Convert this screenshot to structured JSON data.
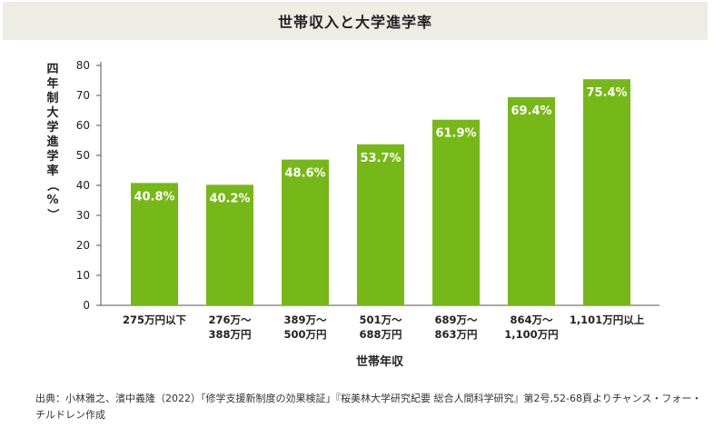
{
  "chart_data": {
    "type": "bar",
    "title": "世帯収入と大学進学率",
    "xlabel": "世帯年収",
    "ylabel": "四年制大学進学率（%）",
    "ylim": [
      0,
      80
    ],
    "yticks": [
      0,
      10,
      20,
      30,
      40,
      50,
      60,
      70,
      80
    ],
    "categories": [
      [
        "275万円以下"
      ],
      [
        "276万～",
        "388万円"
      ],
      [
        "389万～",
        "500万円"
      ],
      [
        "501万～",
        "688万円"
      ],
      [
        "689万～",
        "863万円"
      ],
      [
        "864万～",
        "1,100万円"
      ],
      [
        "1,101万円以上"
      ]
    ],
    "values": [
      40.8,
      40.2,
      48.6,
      53.7,
      61.9,
      69.4,
      75.4
    ],
    "value_labels": [
      "40.8%",
      "40.2%",
      "48.6%",
      "53.7%",
      "61.9%",
      "69.4%",
      "75.4%"
    ],
    "bar_color": "#76b817",
    "grid": false
  },
  "source": "出典：小林雅之、濱中義隆（2022）「修学支援新制度の効果検証」『桜美林大学研究紀要 総合人間科学研究』第2号,52-68頁よりチャンス・フォー・チルドレン作成"
}
